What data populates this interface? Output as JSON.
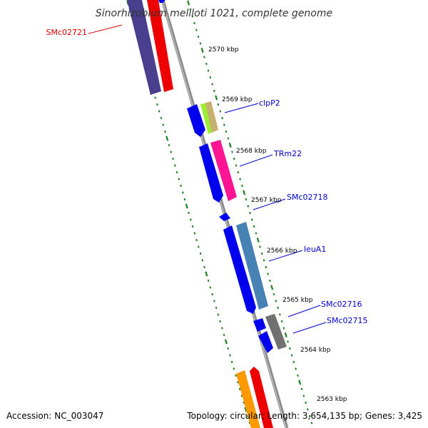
{
  "title": "Sinorhizobium meliloti 1021, complete genome",
  "footer": {
    "accession": "Accession: NC_003047",
    "topology": "Topology: circular; Length: 3,654,135 bp; Genes: 3,425"
  },
  "colors": {
    "backbone": "#8c8c8c",
    "tick_green": "#1e7f1e",
    "label_blue": "#0000cc",
    "label_red": "#dd0000"
  },
  "kbp_marks": [
    "2570 kbp",
    "2569 kbp",
    "2568 kbp",
    "2567 kbp",
    "2566 kbp",
    "2565 kbp",
    "2564 kbp",
    "2563 kbp"
  ],
  "genes": [
    {
      "label": "SMc02721",
      "color": "#dd0000"
    },
    {
      "label": "clpP2",
      "color": "#0000cc"
    },
    {
      "label": "TRm22",
      "color": "#0000cc"
    },
    {
      "label": "SMc02718",
      "color": "#0000cc"
    },
    {
      "label": "leuA1",
      "color": "#0000cc"
    },
    {
      "label": "SMc02716",
      "color": "#0000cc"
    },
    {
      "label": "SMc02715",
      "color": "#0000cc"
    }
  ]
}
